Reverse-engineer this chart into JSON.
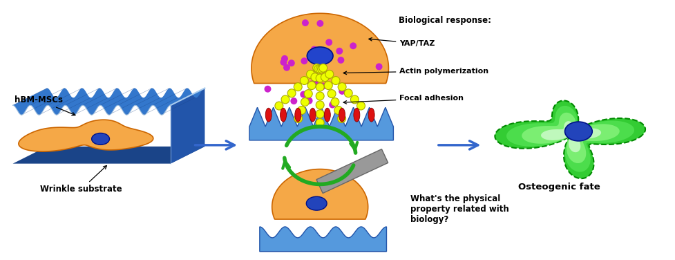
{
  "bg_color": "#ffffff",
  "arrow_color": "#3366cc",
  "green_arrow_color": "#22aa22",
  "orange_cell_color": "#f5a847",
  "blue_nucleus_color": "#2244bb",
  "blue_substrate_color": "#5599dd",
  "blue_substrate_dark": "#2255aa",
  "green_cell_outer": "#22cc22",
  "green_cell_inner": "#99ff99",
  "yellow_actin_color": "#eeff00",
  "yellow_actin_edge": "#aaaa00",
  "magenta_dot_color": "#cc22cc",
  "red_focal_color": "#dd1111",
  "gray_blade_color": "#999999",
  "gray_blade_edge": "#666666",
  "text_color": "#000000",
  "label_hbm": "hBM-MSCs",
  "label_wrinkle": "Wrinkle substrate",
  "label_bio": "Biological response:",
  "label_yap": "YAP/TAZ",
  "label_actin": "Actin polymerization",
  "label_focal": "Focal adhesion",
  "label_osteo": "Osteogenic fate",
  "label_question": "What's the physical\nproperty related with\nbiology?",
  "figsize": [
    9.77,
    3.76
  ],
  "dpi": 100
}
